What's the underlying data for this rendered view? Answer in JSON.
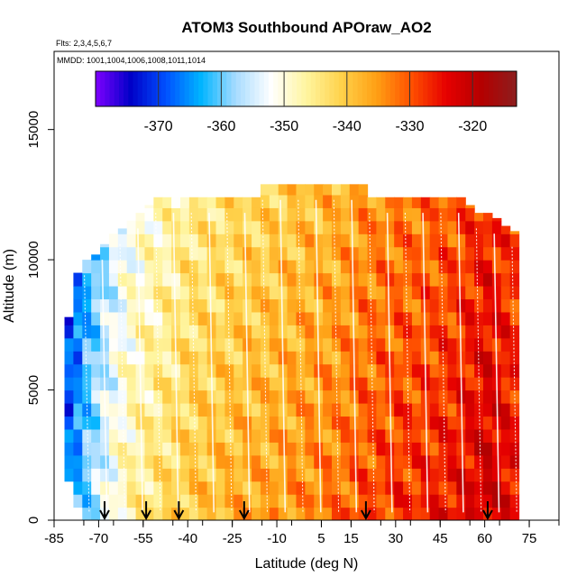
{
  "chart_data": {
    "type": "heatmap",
    "title": "ATOM3 Southbound APOraw_AO2",
    "flights_label": "Flts: 2,3,4,5,6,7",
    "dates_label": "MMDD: 1001,1004,1006,1008,1011,1014",
    "xlabel": "Latitude (deg N)",
    "ylabel": "Altitude (m)",
    "xlim": [
      -85,
      85
    ],
    "ylim": [
      0,
      18000
    ],
    "x_ticks": [
      -85,
      -70,
      -55,
      -40,
      -25,
      -10,
      5,
      15,
      30,
      45,
      60,
      75
    ],
    "y_ticks": [
      0,
      5000,
      10000,
      15000
    ],
    "colorbar": {
      "range": [
        -380,
        -313
      ],
      "ticks": [
        -370,
        -360,
        -350,
        -340,
        -330,
        -320
      ],
      "colors": [
        "#7f00ff",
        "#0000c8",
        "#0050ff",
        "#00b4ff",
        "#a8dcff",
        "#ffffff",
        "#fff5a0",
        "#ffd24b",
        "#ffa014",
        "#ff5000",
        "#e60000",
        "#b40000",
        "#8c1e1e"
      ]
    },
    "profile_arrows_latitude": [
      -68,
      -54,
      -43,
      -21,
      20,
      61
    ],
    "lat_bands": [
      {
        "lat": -80,
        "top": 7800,
        "bottom": 1500,
        "value": -366
      },
      {
        "lat": -77,
        "top": 9500,
        "bottom": 500,
        "value": -363
      },
      {
        "lat": -74,
        "top": 10000,
        "bottom": 0,
        "value": -359
      },
      {
        "lat": -71,
        "top": 10200,
        "bottom": 0,
        "value": -356
      },
      {
        "lat": -68,
        "top": 10600,
        "bottom": 0,
        "value": -353
      },
      {
        "lat": -65,
        "top": 11000,
        "bottom": 0,
        "value": -350
      },
      {
        "lat": -62,
        "top": 11200,
        "bottom": 0,
        "value": -348
      },
      {
        "lat": -59,
        "top": 11500,
        "bottom": 0,
        "value": -346
      },
      {
        "lat": -56,
        "top": 11800,
        "bottom": 0,
        "value": -345
      },
      {
        "lat": -53,
        "top": 12100,
        "bottom": 0,
        "value": -344
      },
      {
        "lat": -50,
        "top": 12400,
        "bottom": 0,
        "value": -343
      },
      {
        "lat": -47,
        "top": 12400,
        "bottom": 0,
        "value": -342
      },
      {
        "lat": -44,
        "top": 12400,
        "bottom": 0,
        "value": -341
      },
      {
        "lat": -41,
        "top": 12400,
        "bottom": 0,
        "value": -340
      },
      {
        "lat": -38,
        "top": 12400,
        "bottom": 0,
        "value": -339
      },
      {
        "lat": -35,
        "top": 12400,
        "bottom": 0,
        "value": -339
      },
      {
        "lat": -32,
        "top": 12400,
        "bottom": 0,
        "value": -338
      },
      {
        "lat": -29,
        "top": 12400,
        "bottom": 0,
        "value": -338
      },
      {
        "lat": -26,
        "top": 12400,
        "bottom": 0,
        "value": -337
      },
      {
        "lat": -23,
        "top": 12400,
        "bottom": 0,
        "value": -337
      },
      {
        "lat": -20,
        "top": 12400,
        "bottom": 0,
        "value": -336
      },
      {
        "lat": -17,
        "top": 12400,
        "bottom": 0,
        "value": -336
      },
      {
        "lat": -14,
        "top": 12900,
        "bottom": 0,
        "value": -336
      },
      {
        "lat": -11,
        "top": 12900,
        "bottom": 0,
        "value": -335
      },
      {
        "lat": -8,
        "top": 12900,
        "bottom": 0,
        "value": -335
      },
      {
        "lat": -5,
        "top": 12900,
        "bottom": 0,
        "value": -334
      },
      {
        "lat": -2,
        "top": 12900,
        "bottom": 0,
        "value": -334
      },
      {
        "lat": 1,
        "top": 12900,
        "bottom": 0,
        "value": -333
      },
      {
        "lat": 4,
        "top": 12900,
        "bottom": 0,
        "value": -333
      },
      {
        "lat": 7,
        "top": 12900,
        "bottom": 0,
        "value": -332
      },
      {
        "lat": 10,
        "top": 12900,
        "bottom": 0,
        "value": -332
      },
      {
        "lat": 13,
        "top": 12900,
        "bottom": 0,
        "value": -331
      },
      {
        "lat": 16,
        "top": 12900,
        "bottom": 0,
        "value": -330
      },
      {
        "lat": 19,
        "top": 12900,
        "bottom": 0,
        "value": -329
      },
      {
        "lat": 22,
        "top": 12400,
        "bottom": 0,
        "value": -329
      },
      {
        "lat": 25,
        "top": 12400,
        "bottom": 0,
        "value": -328
      },
      {
        "lat": 28,
        "top": 12400,
        "bottom": 0,
        "value": -328
      },
      {
        "lat": 31,
        "top": 12400,
        "bottom": 0,
        "value": -327
      },
      {
        "lat": 34,
        "top": 12400,
        "bottom": 0,
        "value": -327
      },
      {
        "lat": 37,
        "top": 12400,
        "bottom": 0,
        "value": -327
      },
      {
        "lat": 40,
        "top": 12400,
        "bottom": 0,
        "value": -326
      },
      {
        "lat": 43,
        "top": 12400,
        "bottom": 0,
        "value": -326
      },
      {
        "lat": 46,
        "top": 12400,
        "bottom": 0,
        "value": -325
      },
      {
        "lat": 49,
        "top": 12400,
        "bottom": 0,
        "value": -325
      },
      {
        "lat": 52,
        "top": 12400,
        "bottom": 0,
        "value": -324
      },
      {
        "lat": 55,
        "top": 12100,
        "bottom": 0,
        "value": -323
      },
      {
        "lat": 58,
        "top": 11800,
        "bottom": 0,
        "value": -322
      },
      {
        "lat": 61,
        "top": 11800,
        "bottom": 0,
        "value": -321
      },
      {
        "lat": 64,
        "top": 11600,
        "bottom": 0,
        "value": -322
      },
      {
        "lat": 67,
        "top": 11300,
        "bottom": 0,
        "value": -323
      },
      {
        "lat": 70,
        "top": 11100,
        "bottom": 0,
        "value": -324
      }
    ]
  }
}
